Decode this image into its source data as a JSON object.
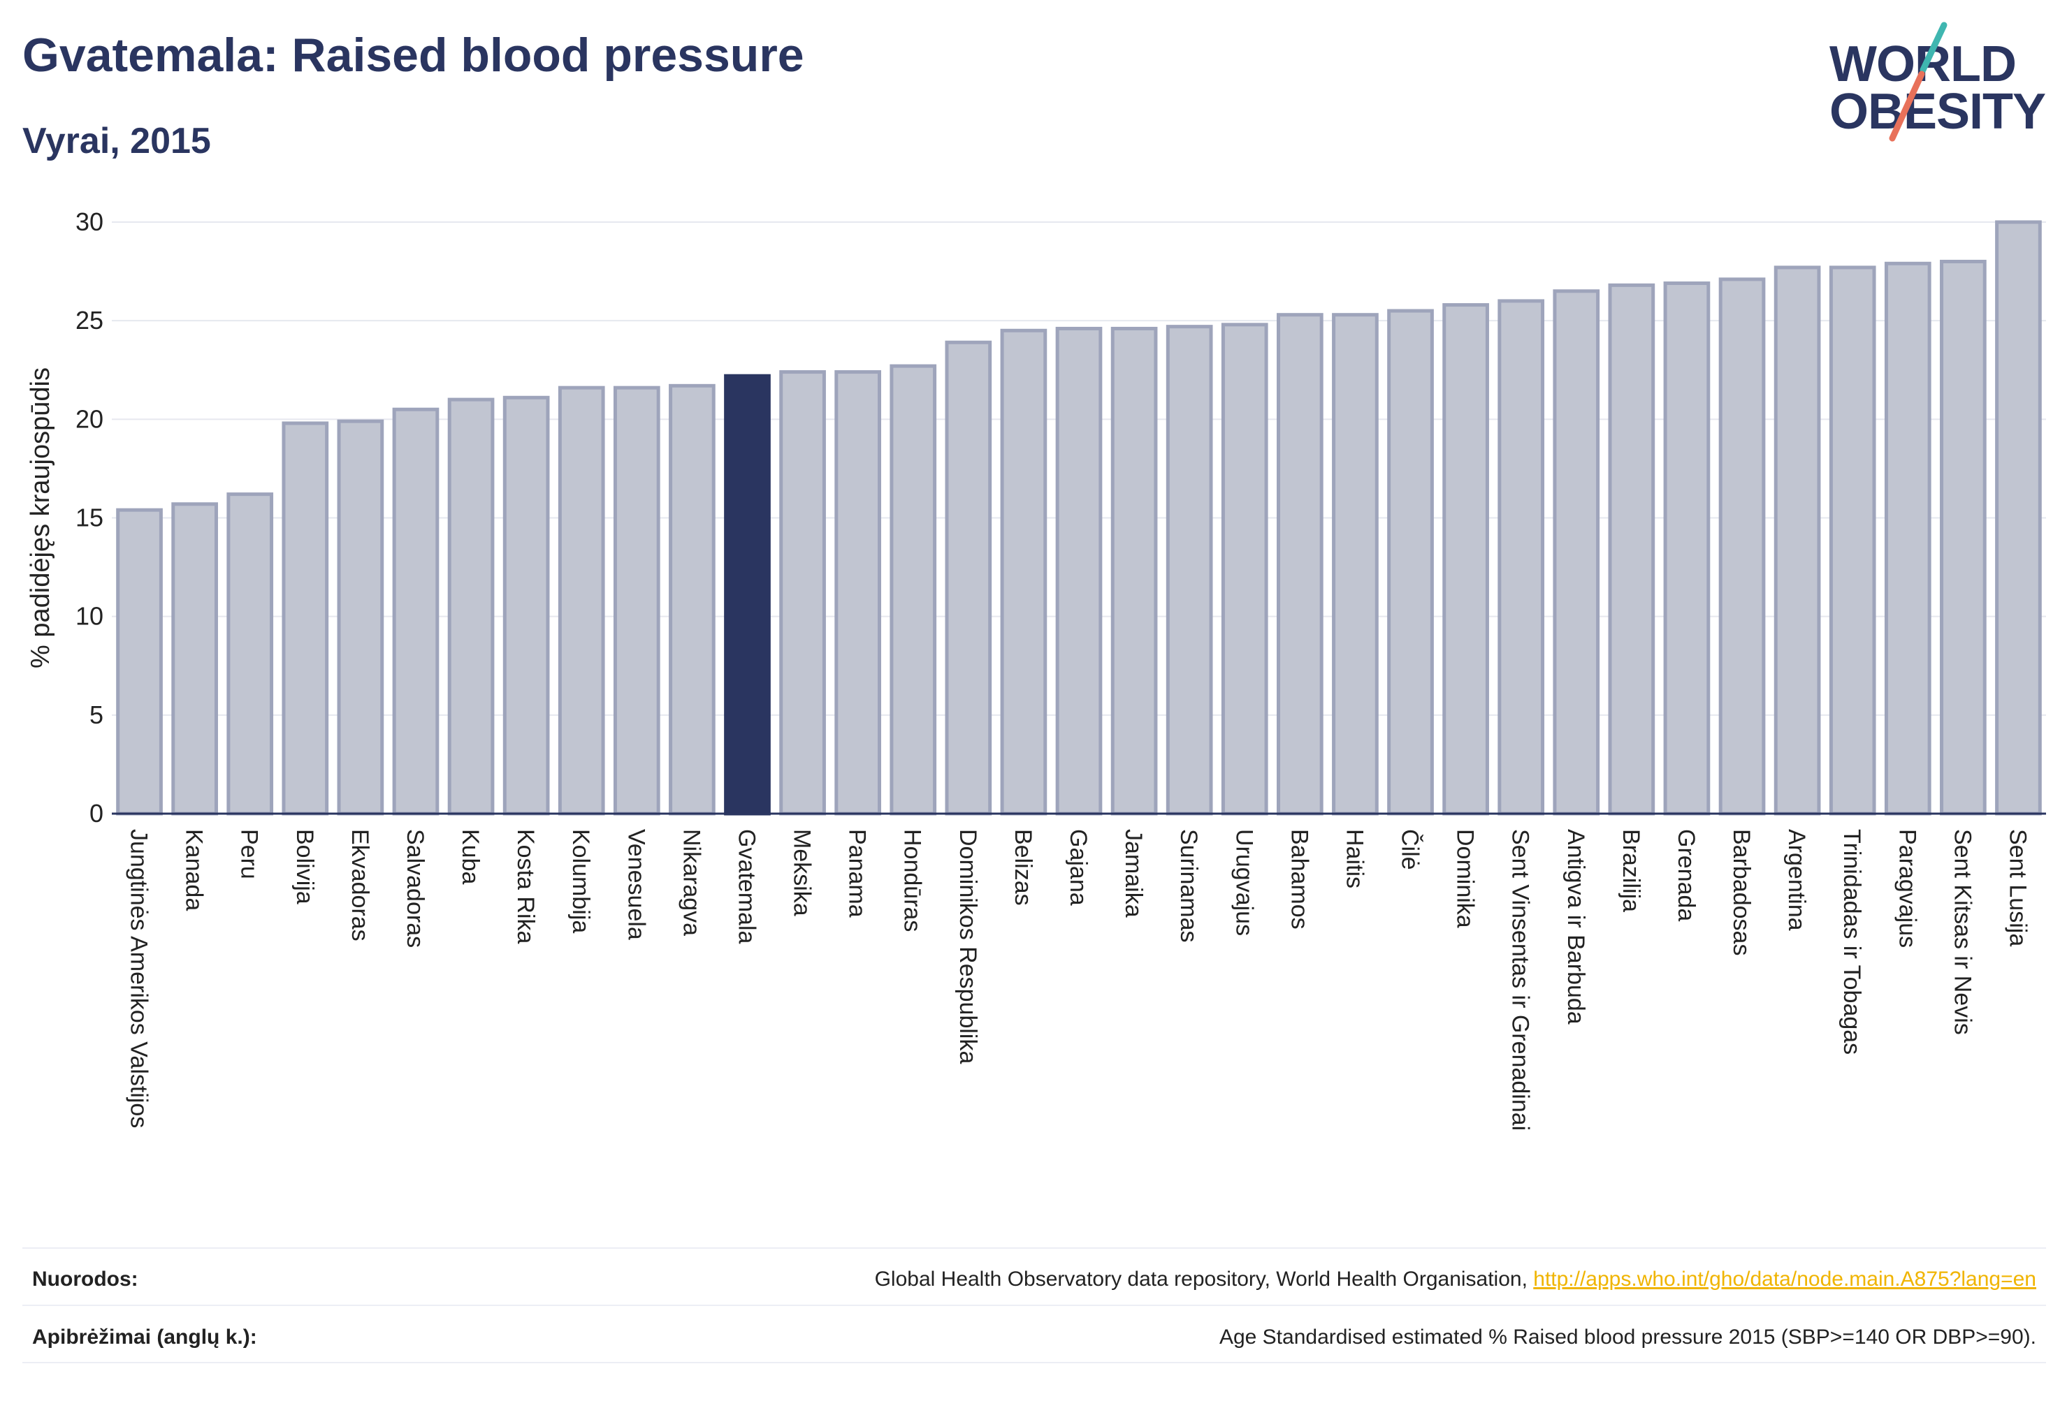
{
  "header": {
    "title": "Gvatemala: Raised blood pressure",
    "subtitle": "Vyrai, 2015"
  },
  "logo": {
    "line1": "WORLD",
    "line2": "OBESITY",
    "slash_colors": [
      "#3fb6b0",
      "#e8715a"
    ]
  },
  "colors": {
    "bar_default": "#c1c5d1",
    "bar_default_border": "#9ea4bb",
    "bar_highlight": "#2a3560",
    "grid": "#e6e8ef",
    "axis_text": "#222222"
  },
  "chart_data": {
    "type": "bar",
    "ylabel": "% padidėjęs kraujospūdis",
    "xlabel": "",
    "ylim": [
      0,
      30
    ],
    "yticks": [
      0,
      5,
      10,
      15,
      20,
      25,
      30
    ],
    "grid": true,
    "highlight": "Gvatemala",
    "categories": [
      "Jungtinės Amerikos Valstijos",
      "Kanada",
      "Peru",
      "Bolivija",
      "Ekvadoras",
      "Salvadoras",
      "Kuba",
      "Kosta Rika",
      "Kolumbija",
      "Venesuela",
      "Nikaragva",
      "Gvatemala",
      "Meksika",
      "Panama",
      "Hondūras",
      "Dominikos Respublika",
      "Belizas",
      "Gajana",
      "Jamaika",
      "Surinamas",
      "Urugvajus",
      "Bahamos",
      "Haitis",
      "Čilė",
      "Dominika",
      "Sent Vinsentas ir Grenadinai",
      "Antigva ir Barbuda",
      "Brazilija",
      "Grenada",
      "Barbadosas",
      "Argentina",
      "Trinidadas ir Tobagas",
      "Paragvajus",
      "Sent Kitsas ir Nevis",
      "Sent Lusija"
    ],
    "values": [
      15.4,
      15.7,
      16.2,
      19.8,
      19.9,
      20.5,
      21.0,
      21.1,
      21.6,
      21.6,
      21.7,
      22.2,
      22.4,
      22.4,
      22.7,
      23.9,
      24.5,
      24.6,
      24.6,
      24.7,
      24.8,
      25.3,
      25.3,
      25.5,
      25.8,
      26.0,
      26.5,
      26.8,
      26.9,
      27.1,
      27.7,
      27.7,
      27.9,
      28.0,
      30.0
    ]
  },
  "footer": {
    "refs_label": "Nuorodos:",
    "refs_text": "Global Health Observatory data repository, World Health Organisation, ",
    "refs_link": "http://apps.who.int/gho/data/node.main.A875?lang=en",
    "defs_label": "Apibrėžimai (anglų k.):",
    "defs_text": "Age Standardised estimated % Raised blood pressure 2015 (SBP>=140 OR DBP>=90)."
  }
}
